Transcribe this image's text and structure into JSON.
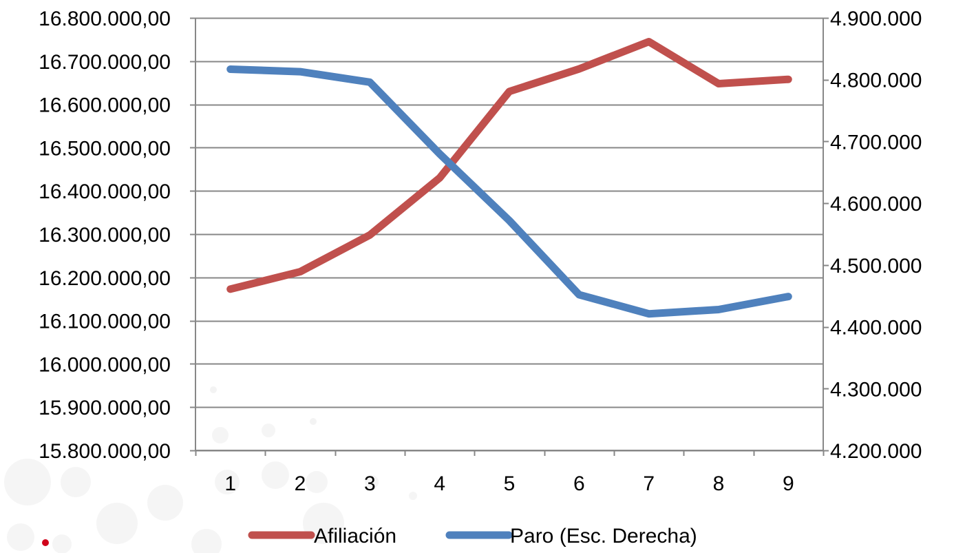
{
  "chart_data": {
    "type": "line",
    "title": "",
    "xlabel": "",
    "ylabel": "",
    "x": [
      1,
      2,
      3,
      4,
      5,
      6,
      7,
      8,
      9
    ],
    "x_tick_labels": [
      "1",
      "2",
      "3",
      "4",
      "5",
      "6",
      "7",
      "8",
      "9"
    ],
    "y_left": {
      "ylim": [
        15800000,
        16800000
      ],
      "ticks": [
        15800000,
        15900000,
        16000000,
        16100000,
        16200000,
        16300000,
        16400000,
        16500000,
        16600000,
        16700000,
        16800000
      ],
      "tick_labels": [
        "15.800.000,00",
        "15.900.000,00",
        "16.000.000,00",
        "16.100.000,00",
        "16.200.000,00",
        "16.300.000,00",
        "16.400.000,00",
        "16.500.000,00",
        "16.600.000,00",
        "16.700.000,00",
        "16.800.000,00"
      ]
    },
    "y_right": {
      "ylim": [
        4200000,
        4900000
      ],
      "ticks": [
        4200000,
        4300000,
        4400000,
        4500000,
        4600000,
        4700000,
        4800000,
        4900000
      ],
      "tick_labels": [
        "4.200.000",
        "4.300.000",
        "4.400.000",
        "4.500.000",
        "4.600.000",
        "4.700.000",
        "4.800.000",
        "4.900.000"
      ]
    },
    "series": [
      {
        "name": "Afiliación",
        "axis": "left",
        "color": "#c0504d",
        "values": [
          16173000,
          16213000,
          16298000,
          16430000,
          16630000,
          16682000,
          16745000,
          16648000,
          16658000
        ]
      },
      {
        "name": "Paro (Esc. Derecha)",
        "axis": "right",
        "color": "#4f81bd",
        "values": [
          4817000,
          4813000,
          4796000,
          4680000,
          4572000,
          4452000,
          4421000,
          4428000,
          4449000
        ]
      }
    ],
    "grid": true,
    "legend_position": "bottom"
  }
}
